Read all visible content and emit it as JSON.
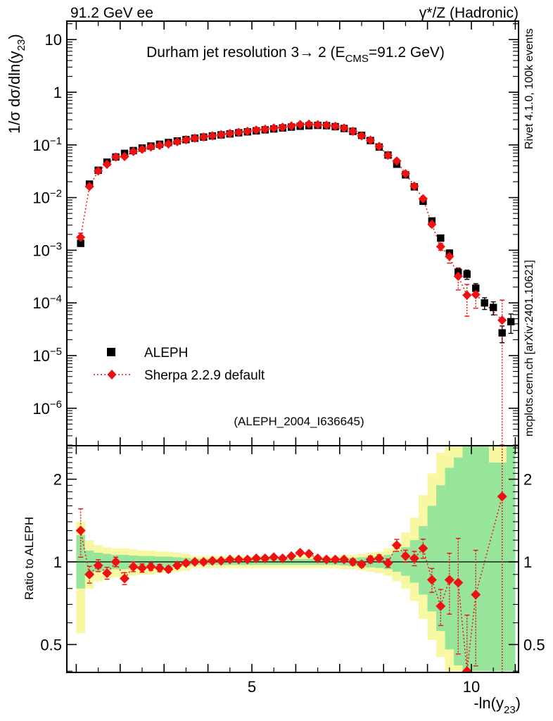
{
  "header": {
    "left": "91.2 GeV ee",
    "right": "γ*/Z (Hadronic)"
  },
  "title": {
    "pre": "Durham jet resolution 3→ 2 (E",
    "sub": "CMS",
    "post": "=91.2 GeV)"
  },
  "watermark": "(ALEPH_2004_I636645)",
  "side_notes": {
    "top": "Rivet 4.1.0,  100k events",
    "bottom": "mcplots.cern.ch [arXiv:2401.10621]"
  },
  "axes": {
    "y_main": {
      "pre": "1/σ  dσ/dln(y",
      "sub": "23",
      "post": ")"
    },
    "y_ratio": "Ratio to ALEPH",
    "x": {
      "pre": "-ln(y",
      "sub": "23",
      "post": ")"
    }
  },
  "legend": [
    {
      "label": "ALEPH",
      "marker": "square",
      "color": "#000000"
    },
    {
      "label": "Sherpa 2.2.9 default",
      "marker": "diamond",
      "color": "#ee1111"
    }
  ],
  "chart_data": {
    "type": "line",
    "title": "Durham jet resolution 3→2 (E_CMS=91.2 GeV)",
    "xlabel": "-ln(y_23)",
    "ylabel_main": "1/σ dσ/dln(y_23)",
    "ylabel_ratio": "Ratio to ALEPH",
    "xlim": [
      0.79,
      11.07
    ],
    "ylim_main": [
      2e-07,
      22
    ],
    "ylim_ratio": [
      0.396,
      2.65
    ],
    "x_ticks_labeled": [
      5,
      10
    ],
    "y_ticks_main_exponents": [
      1,
      0,
      -1,
      -2,
      -3,
      -4,
      -5,
      -6
    ],
    "y_ticks_ratio": [
      0.5,
      1,
      2
    ],
    "bin_start": 1.1,
    "bin_step": 0.2,
    "series": [
      {
        "name": "ALEPH",
        "values": [
          0.00135,
          0.018,
          0.033,
          0.047,
          0.059,
          0.069,
          0.078,
          0.087,
          0.095,
          0.103,
          0.111,
          0.119,
          0.126,
          0.134,
          0.141,
          0.148,
          0.155,
          0.162,
          0.17,
          0.177,
          0.185,
          0.193,
          0.201,
          0.21,
          0.218,
          0.226,
          0.232,
          0.235,
          0.232,
          0.222,
          0.205,
          0.181,
          0.152,
          0.121,
          0.091,
          0.064,
          0.043,
          0.027,
          0.016,
          0.0085,
          0.0036,
          0.0017,
          0.00088,
          0.00038,
          0.00035,
          0.00019,
          0.0001,
          8.2e-05,
          2.7e-05,
          4.4e-05
        ],
        "err_frac": [
          0.05,
          0.03,
          0.025,
          0.02,
          0.02,
          0.02,
          0.02,
          0.02,
          0.02,
          0.02,
          0.02,
          0.02,
          0.02,
          0.02,
          0.02,
          0.02,
          0.02,
          0.02,
          0.02,
          0.02,
          0.02,
          0.02,
          0.02,
          0.02,
          0.02,
          0.02,
          0.02,
          0.02,
          0.02,
          0.02,
          0.02,
          0.02,
          0.02,
          0.025,
          0.025,
          0.03,
          0.04,
          0.05,
          0.06,
          0.08,
          0.1,
          0.12,
          0.15,
          0.18,
          0.2,
          0.22,
          0.25,
          0.28,
          0.35,
          0.4
        ]
      },
      {
        "name": "Sherpa 2.2.9 default",
        "values": [
          0.00176,
          0.0162,
          0.032,
          0.0428,
          0.059,
          0.06,
          0.0749,
          0.0827,
          0.0912,
          0.0979,
          0.104,
          0.115,
          0.125,
          0.134,
          0.141,
          0.149,
          0.157,
          0.165,
          0.173,
          0.181,
          0.191,
          0.199,
          0.209,
          0.216,
          0.229,
          0.244,
          0.248,
          0.242,
          0.237,
          0.226,
          0.209,
          0.181,
          0.149,
          0.123,
          0.0937,
          0.0634,
          0.0495,
          0.0284,
          0.0165,
          0.0095,
          0.0031,
          0.00117,
          0.00076,
          0.00032,
          0.00014,
          0.000144,
          null,
          null,
          4.7e-05,
          null
        ],
        "err_frac": [
          0.2,
          0.07,
          0.05,
          0.05,
          0.04,
          0.05,
          0.04,
          0.035,
          0.03,
          0.03,
          0.025,
          0.025,
          0.02,
          0.02,
          0.02,
          0.015,
          0.015,
          0.015,
          0.015,
          0.015,
          0.015,
          0.015,
          0.015,
          0.015,
          0.015,
          0.02,
          0.02,
          0.02,
          0.02,
          0.02,
          0.02,
          0.025,
          0.025,
          0.03,
          0.03,
          0.035,
          0.05,
          0.05,
          0.06,
          0.08,
          0.1,
          0.15,
          0.25,
          0.45,
          0.6,
          0.45,
          null,
          null,
          1.4,
          null
        ]
      }
    ],
    "ratio": {
      "values": [
        1.3,
        0.9,
        0.97,
        0.91,
        1.0,
        0.87,
        0.96,
        0.95,
        0.96,
        0.95,
        0.94,
        0.97,
        0.99,
        1.0,
        1.0,
        1.01,
        1.01,
        1.02,
        1.02,
        1.02,
        1.03,
        1.03,
        1.04,
        1.03,
        1.05,
        1.08,
        1.07,
        1.03,
        1.02,
        1.02,
        1.02,
        1.0,
        0.98,
        1.02,
        1.03,
        0.99,
        1.15,
        1.05,
        1.03,
        1.12,
        0.86,
        0.69,
        0.86,
        0.84,
        0.4,
        0.76,
        null,
        null,
        1.73,
        null
      ],
      "err_frac": [
        0.2,
        0.07,
        0.05,
        0.05,
        0.04,
        0.05,
        0.04,
        0.035,
        0.03,
        0.03,
        0.025,
        0.025,
        0.02,
        0.02,
        0.02,
        0.015,
        0.015,
        0.015,
        0.015,
        0.015,
        0.015,
        0.015,
        0.015,
        0.015,
        0.015,
        0.02,
        0.02,
        0.02,
        0.02,
        0.02,
        0.02,
        0.025,
        0.025,
        0.03,
        0.03,
        0.035,
        0.05,
        0.05,
        0.06,
        0.08,
        0.1,
        0.15,
        0.25,
        0.45,
        0.6,
        0.45,
        null,
        null,
        1.4,
        null
      ]
    },
    "bands": {
      "yellow": [
        [
          0.55,
          1.4
        ],
        [
          0.8,
          1.2
        ],
        [
          0.85,
          1.15
        ],
        [
          0.87,
          1.13
        ],
        [
          0.88,
          1.12
        ],
        [
          0.88,
          1.12
        ],
        [
          0.89,
          1.11
        ],
        [
          0.9,
          1.1
        ],
        [
          0.9,
          1.1
        ],
        [
          0.91,
          1.09
        ],
        [
          0.91,
          1.09
        ],
        [
          0.92,
          1.08
        ],
        [
          0.93,
          1.07
        ],
        [
          0.95,
          1.05
        ],
        [
          0.95,
          1.05
        ],
        [
          0.95,
          1.05
        ],
        [
          0.95,
          1.05
        ],
        [
          0.95,
          1.05
        ],
        [
          0.95,
          1.05
        ],
        [
          0.95,
          1.05
        ],
        [
          0.95,
          1.05
        ],
        [
          0.95,
          1.05
        ],
        [
          0.95,
          1.05
        ],
        [
          0.95,
          1.05
        ],
        [
          0.95,
          1.05
        ],
        [
          0.95,
          1.05
        ],
        [
          0.95,
          1.05
        ],
        [
          0.95,
          1.05
        ],
        [
          0.95,
          1.05
        ],
        [
          0.95,
          1.05
        ],
        [
          0.94,
          1.06
        ],
        [
          0.94,
          1.06
        ],
        [
          0.93,
          1.07
        ],
        [
          0.92,
          1.08
        ],
        [
          0.91,
          1.09
        ],
        [
          0.89,
          1.12
        ],
        [
          0.85,
          1.18
        ],
        [
          0.8,
          1.28
        ],
        [
          0.72,
          1.45
        ],
        [
          0.62,
          1.75
        ],
        [
          0.52,
          2.1
        ],
        [
          0.45,
          2.5
        ],
        [
          0.4,
          2.65
        ],
        [
          0.4,
          2.65
        ],
        [
          0.4,
          2.65
        ],
        [
          0.4,
          2.65
        ],
        [
          0.4,
          2.65
        ],
        [
          0.4,
          2.65
        ],
        [
          0.4,
          2.65
        ],
        [
          0.4,
          2.65
        ]
      ],
      "green": [
        [
          0.8,
          1.25
        ],
        [
          0.9,
          1.1
        ],
        [
          0.92,
          1.08
        ],
        [
          0.93,
          1.07
        ],
        [
          0.94,
          1.06
        ],
        [
          0.94,
          1.06
        ],
        [
          0.945,
          1.055
        ],
        [
          0.95,
          1.05
        ],
        [
          0.95,
          1.05
        ],
        [
          0.955,
          1.045
        ],
        [
          0.955,
          1.045
        ],
        [
          0.96,
          1.04
        ],
        [
          0.965,
          1.035
        ],
        [
          0.975,
          1.025
        ],
        [
          0.975,
          1.025
        ],
        [
          0.975,
          1.025
        ],
        [
          0.975,
          1.025
        ],
        [
          0.975,
          1.025
        ],
        [
          0.975,
          1.025
        ],
        [
          0.975,
          1.025
        ],
        [
          0.975,
          1.025
        ],
        [
          0.975,
          1.025
        ],
        [
          0.975,
          1.025
        ],
        [
          0.975,
          1.025
        ],
        [
          0.975,
          1.025
        ],
        [
          0.975,
          1.025
        ],
        [
          0.975,
          1.025
        ],
        [
          0.975,
          1.025
        ],
        [
          0.975,
          1.025
        ],
        [
          0.975,
          1.025
        ],
        [
          0.97,
          1.03
        ],
        [
          0.965,
          1.035
        ],
        [
          0.96,
          1.04
        ],
        [
          0.955,
          1.045
        ],
        [
          0.95,
          1.05
        ],
        [
          0.94,
          1.06
        ],
        [
          0.92,
          1.09
        ],
        [
          0.89,
          1.13
        ],
        [
          0.84,
          1.2
        ],
        [
          0.76,
          1.35
        ],
        [
          0.66,
          1.6
        ],
        [
          0.56,
          1.9
        ],
        [
          0.48,
          2.2
        ],
        [
          0.42,
          2.4
        ],
        [
          0.4,
          2.65
        ],
        [
          0.4,
          2.65
        ],
        [
          0.4,
          2.65
        ],
        [
          0.4,
          2.3
        ],
        [
          0.4,
          2.3
        ],
        [
          0.4,
          2.65
        ]
      ]
    },
    "colors": {
      "data": "#000000",
      "mc": "#ee1111",
      "band_inner": "#97e59b",
      "band_outer": "#f8f8a2",
      "watermark": "#b0b0b0",
      "side_note": "#8c8c8c"
    },
    "legend_position": "left-middle",
    "grid": false
  }
}
